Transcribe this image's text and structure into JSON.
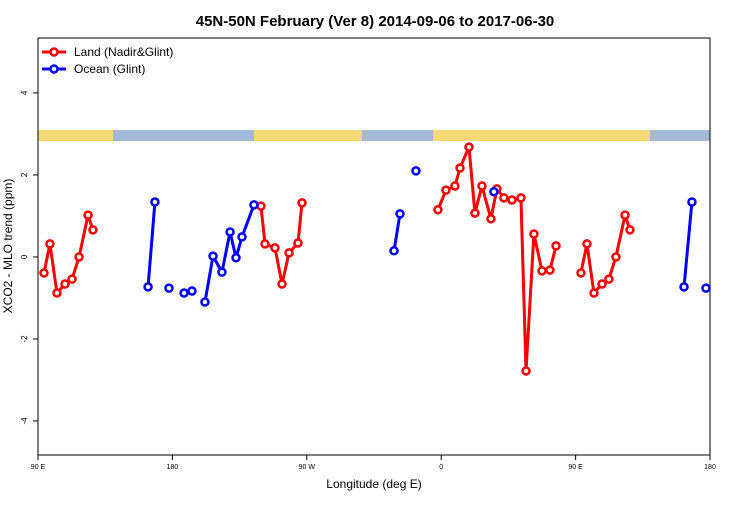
{
  "chart_data": {
    "type": "line",
    "title": "45N-50N February (Ver 8)   2014-09-06 to 2017-06-30",
    "x_label": "Longitude (deg E)",
    "y_label": "XCO2 - MLO trend (ppm)",
    "xlim": [
      90,
      540
    ],
    "ylim": [
      -4.83,
      5.34
    ],
    "xticks": [
      {
        "value": 90,
        "label": "90 E"
      },
      180,
      {
        "value": 270,
        "label": "90 W"
      },
      {
        "value": 360,
        "label": "0"
      },
      {
        "value": 450,
        "label": "90 E"
      },
      {
        "value": 540,
        "label": "180"
      }
    ],
    "yticks": [
      4,
      2,
      0,
      -2,
      -4
    ],
    "legend": "top-left",
    "series": [
      {
        "name": "Land (Nadir&Glint)",
        "color": "#ff0000",
        "x": [
          94.0,
          98.0,
          102.7,
          108.1,
          112.8,
          117.5,
          123.5,
          126.8,
          null,
          239.3,
          242.0,
          248.7,
          253.4,
          258.1,
          264.1,
          266.8,
          null,
          357.8,
          363.2,
          369.2,
          372.6,
          378.6,
          382.6,
          387.3,
          393.3,
          397.3,
          402.0,
          407.4,
          413.4,
          416.8,
          422.1,
          427.5,
          432.8,
          436.9,
          null,
          453.6,
          457.6,
          462.3,
          467.7,
          472.3,
          477.0,
          483.1,
          486.4
        ],
        "values": [
          -0.39,
          0.32,
          -0.88,
          -0.66,
          -0.54,
          0,
          1.02,
          0.66,
          null,
          1.24,
          0.32,
          0.22,
          -0.66,
          0.1,
          0.34,
          1.32,
          null,
          1.15,
          1.63,
          1.73,
          2.17,
          2.68,
          1.07,
          1.73,
          0.93,
          1.66,
          1.44,
          1.39,
          1.44,
          -2.78,
          0.56,
          -0.34,
          -0.32,
          0.27,
          null,
          -0.39,
          0.32,
          -0.88,
          -0.66,
          -0.54,
          0,
          1.02,
          0.66
        ]
      },
      {
        "name": "Ocean (Glint)",
        "color": "#0000ff",
        "x": [
          163.7,
          168.3,
          null,
          177.7,
          null,
          187.8,
          193.1,
          null,
          201.8,
          207.2,
          213.2,
          218.6,
          222.6,
          226.6,
          234.6,
          null,
          328.4,
          332.4,
          null,
          343.1,
          null,
          395.3,
          null,
          522.6,
          527.9,
          null,
          537.3
        ],
        "values": [
          -0.73,
          1.34,
          null,
          -0.76,
          null,
          -0.88,
          -0.83,
          null,
          -1.1,
          0.02,
          -0.37,
          0.61,
          -0.02,
          0.49,
          1.27,
          null,
          0.15,
          1.05,
          null,
          2.1,
          null,
          1.59,
          null,
          -0.73,
          1.34,
          null,
          -0.76
        ]
      }
    ]
  }
}
